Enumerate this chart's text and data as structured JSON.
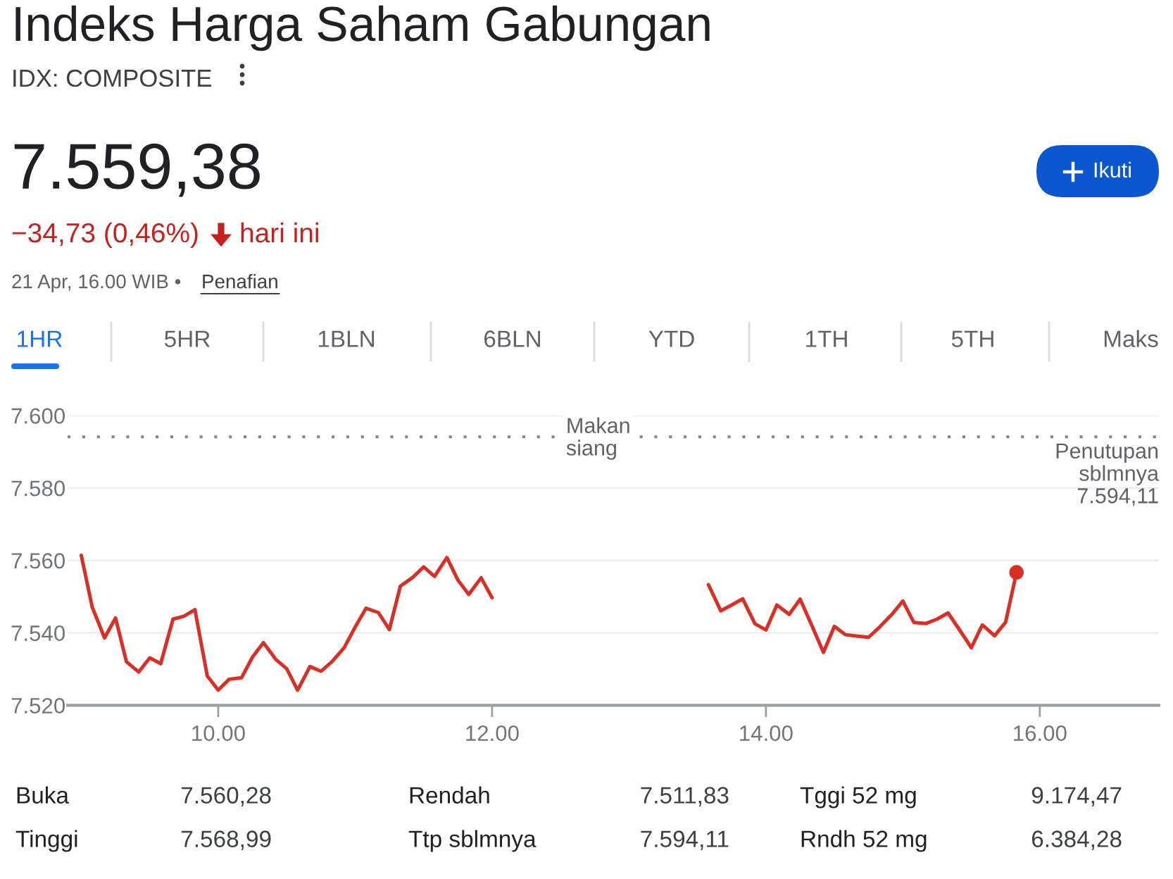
{
  "chart_data": {
    "type": "line",
    "title": "Indeks Harga Saham Gabungan",
    "subtitle": "IDX: COMPOSITE",
    "series": [
      {
        "color": "#d93025",
        "x": [
          9.0,
          9.08,
          9.17,
          9.25,
          9.33,
          9.42,
          9.5,
          9.58,
          9.67,
          9.75,
          9.83,
          9.92,
          10.0,
          10.08,
          10.17,
          10.25,
          10.33,
          10.42,
          10.5,
          10.58,
          10.67,
          10.75,
          10.83,
          10.92,
          11.0,
          11.08,
          11.17,
          11.25,
          11.33,
          11.42,
          11.5,
          11.58,
          11.67,
          11.75,
          11.83,
          11.92,
          12.0
        ],
        "values": [
          7561.4,
          7547.1,
          7538.6,
          7544.1,
          7532.0,
          7529.2,
          7533.1,
          7531.5,
          7543.8,
          7544.6,
          7546.4,
          7528.1,
          7524.2,
          7527.2,
          7527.6,
          7533.3,
          7537.3,
          7532.7,
          7530.1,
          7524.2,
          7530.7,
          7529.4,
          7532.0,
          7535.9,
          7541.6,
          7546.8,
          7545.6,
          7540.9,
          7552.9,
          7555.3,
          7558.2,
          7555.6,
          7560.8,
          7554.6,
          7550.6,
          7555.2,
          7549.7
        ]
      },
      {
        "color": "#d93025",
        "x": [
          13.58,
          13.67,
          13.75,
          13.83,
          13.92,
          14.0,
          14.08,
          14.17,
          14.25,
          14.33,
          14.42,
          14.5,
          14.58,
          14.67,
          14.75,
          14.83,
          14.92,
          15.0,
          15.08,
          15.17,
          15.25,
          15.33,
          15.42,
          15.5,
          15.58,
          15.67,
          15.75,
          15.83
        ],
        "values": [
          7553.3,
          7546.1,
          7547.7,
          7549.4,
          7542.5,
          7540.8,
          7547.7,
          7545.1,
          7549.3,
          7542.5,
          7534.6,
          7541.8,
          7539.5,
          7539.1,
          7538.8,
          7541.6,
          7545.1,
          7548.8,
          7542.9,
          7542.6,
          7543.8,
          7545.5,
          7540.5,
          7535.9,
          7542.2,
          7539.2,
          7542.9,
          7556.7
        ]
      },
      {
        "type": "scatter",
        "color": "#d93025",
        "marker": "circle",
        "x": [
          15.83
        ],
        "values": [
          7556.7
        ]
      }
    ],
    "xlim": [
      8.9,
      16.87
    ],
    "xticks": [
      {
        "value": 10,
        "label": "10.00"
      },
      {
        "value": 12,
        "label": "12.00"
      },
      {
        "value": 14,
        "label": "14.00"
      },
      {
        "value": 16,
        "label": "16.00"
      }
    ],
    "ylim": [
      7520,
      7600
    ],
    "yticks": [
      {
        "value": 7520,
        "label": "7.520"
      },
      {
        "value": 7540,
        "label": "7.540"
      },
      {
        "value": 7560,
        "label": "7.560"
      },
      {
        "value": 7580,
        "label": "7.580"
      },
      {
        "value": 7600,
        "label": "7.600"
      }
    ],
    "ref_lines": [
      {
        "axis": "y",
        "value": 7594.11,
        "label": "Penutupan\nsblmnya\n7.594,11",
        "color": "#80868b",
        "line_style": "dotted"
      }
    ],
    "grid": "y",
    "annotations": [
      "7.559,38",
      "−34,73 (0,46%)",
      "hari ini",
      "21 Apr, 16.00 WIB •",
      "Penafian",
      "Ikuti",
      "1HR",
      "5HR",
      "1BLN",
      "6BLN",
      "YTD",
      "1TH",
      "5TH",
      "Maks",
      {
        "text": "Makan\nsiang",
        "x": 12.54,
        "y": 7594.11
      },
      "Buka",
      "7.560,28",
      "Rendah",
      "7.511,83",
      "Tggi 52 mg",
      "9.174,47",
      "Tinggi",
      "7.568,99",
      "Ttp sblmnya",
      "7.594,11",
      "Rndh 52 mg",
      "6.384,28"
    ]
  }
}
